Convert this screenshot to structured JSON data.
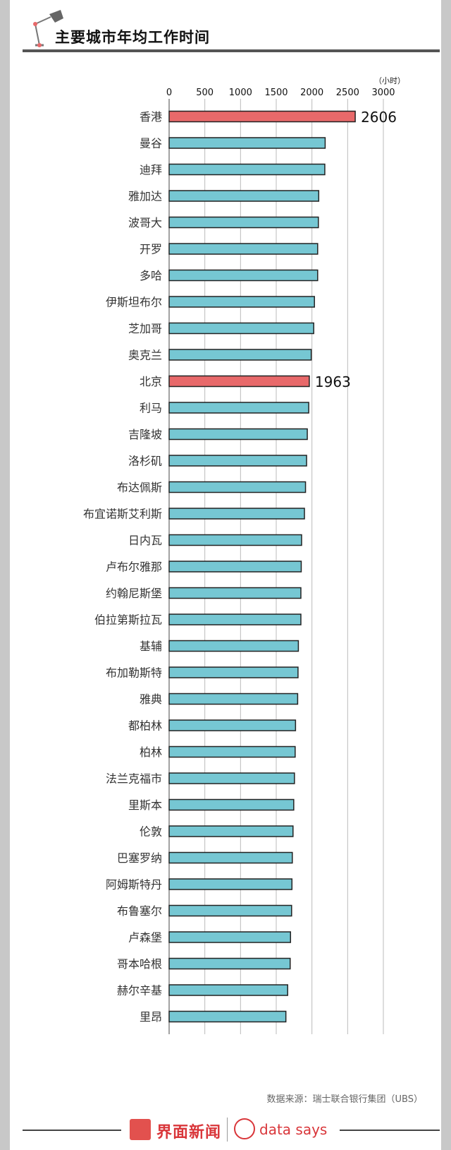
{
  "header": {
    "title": "主要城市年均工作时间"
  },
  "source": "数据来源：瑞士联合银行集团（UBS）",
  "brand": {
    "cn": "界面新闻",
    "en": "data says"
  },
  "colors": {
    "highlight": "#e8696a",
    "normal": "#76c7d3",
    "outline": "#222222",
    "grid": "#bbbbbb"
  },
  "chart_data": {
    "type": "bar",
    "orientation": "horizontal",
    "unit_label": "（小时）",
    "xlim": [
      0,
      3000
    ],
    "ticks": [
      "0",
      "500",
      "1000",
      "1500",
      "2000",
      "2500",
      "3000"
    ],
    "grid": true,
    "categories": [
      "香港",
      "曼谷",
      "迪拜",
      "雅加达",
      "波哥大",
      "开罗",
      "多哈",
      "伊斯坦布尔",
      "芝加哥",
      "奥克兰",
      "北京",
      "利马",
      "吉隆坡",
      "洛杉矶",
      "布达佩斯",
      "布宜诺斯艾利斯",
      "日内瓦",
      "卢布尔雅那",
      "约翰尼斯堡",
      "伯拉第斯拉瓦",
      "基辅",
      "布加勒斯特",
      "雅典",
      "都柏林",
      "柏林",
      "法兰克福市",
      "里斯本",
      "伦敦",
      "巴塞罗纳",
      "阿姆斯特丹",
      "布鲁塞尔",
      "卢森堡",
      "哥本哈根",
      "赫尔辛基",
      "里昂"
    ],
    "values": [
      2606,
      2185,
      2180,
      2095,
      2090,
      2080,
      2080,
      2035,
      2025,
      1990,
      1963,
      1955,
      1935,
      1925,
      1910,
      1895,
      1855,
      1850,
      1845,
      1845,
      1810,
      1805,
      1800,
      1770,
      1765,
      1755,
      1745,
      1735,
      1725,
      1720,
      1715,
      1700,
      1695,
      1660,
      1635
    ],
    "highlight": [
      "香港",
      "北京"
    ],
    "data_labels": {
      "香港": "2606",
      "北京": "1963"
    }
  }
}
